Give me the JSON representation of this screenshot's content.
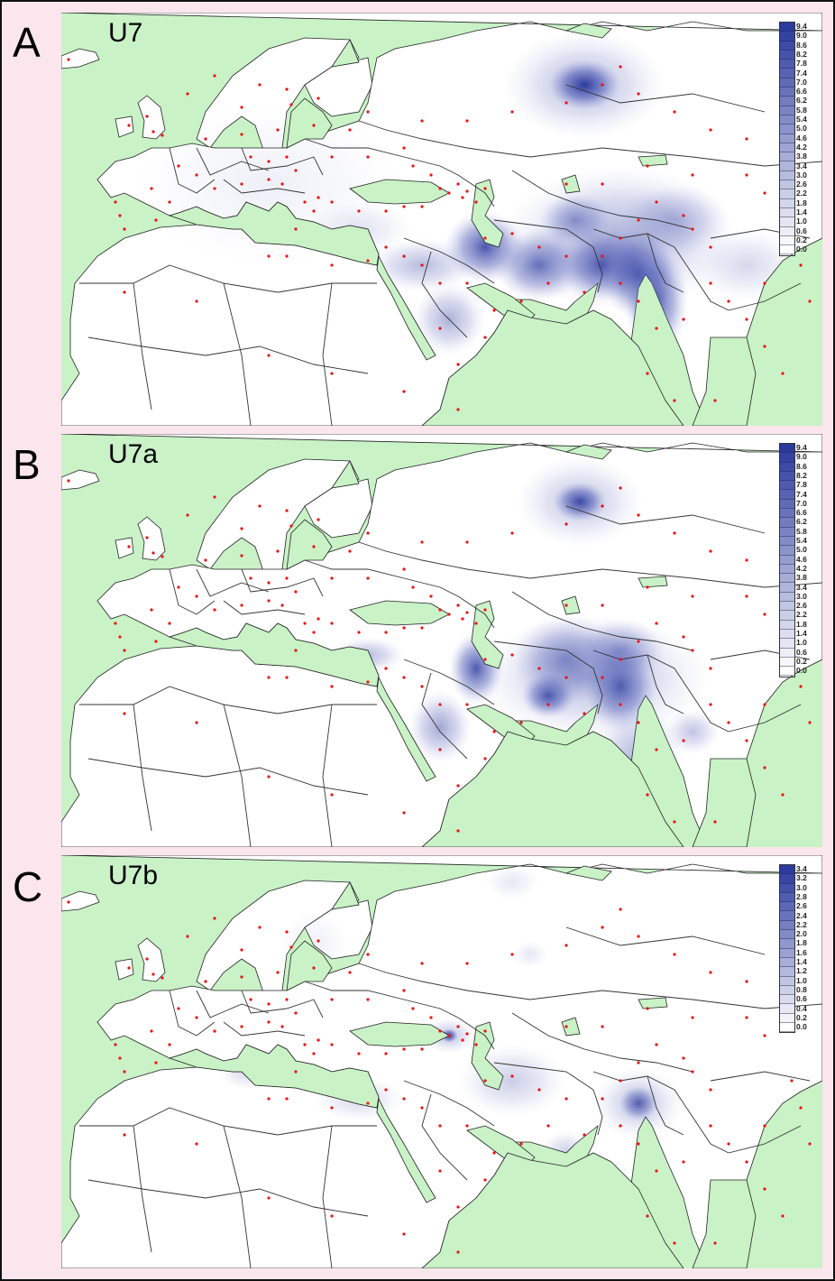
{
  "figure": {
    "panels": [
      {
        "letter": "A",
        "title": "U7",
        "legend": {
          "max": 9.4,
          "labels": [
            "9.4",
            "9.0",
            "8.6",
            "8.2",
            "7.8",
            "7.4",
            "7.0",
            "6.6",
            "6.2",
            "5.8",
            "5.4",
            "5.0",
            "4.6",
            "4.2",
            "3.8",
            "3.4",
            "3.0",
            "2.6",
            "2.2",
            "1.8",
            "1.4",
            "1.0",
            "0.6",
            "0.2",
            "0.0"
          ]
        },
        "hotspots_description": "High frequency across Iran, Afghanistan, Pakistan, northwest India, Gujarat; secondary peak in Volga-Ural region of Russia; moderate in Arabia, Turkey, Caucasus"
      },
      {
        "letter": "B",
        "title": "U7a",
        "legend": {
          "max": 9.4,
          "labels": [
            "9.4",
            "9.0",
            "8.6",
            "8.2",
            "7.8",
            "7.4",
            "7.0",
            "6.6",
            "6.2",
            "5.8",
            "5.4",
            "5.0",
            "4.6",
            "4.2",
            "3.8",
            "3.4",
            "3.0",
            "2.6",
            "2.2",
            "1.8",
            "1.4",
            "1.0",
            "0.6",
            "0.2",
            "0.0"
          ]
        },
        "hotspots_description": "Peaks in western Iran, southeast Iran/Baluchistan, Pakistan/Punjab; secondary in Volga-Ural; moderate in Turkey and Arabia"
      },
      {
        "letter": "C",
        "title": "U7b",
        "legend": {
          "max": 3.4,
          "labels": [
            "3.4",
            "3.2",
            "3.0",
            "2.8",
            "2.6",
            "2.4",
            "2.2",
            "2.0",
            "1.8",
            "1.6",
            "1.4",
            "1.2",
            "1.0",
            "0.8",
            "0.6",
            "0.4",
            "0.2",
            "0.0"
          ]
        },
        "hotspots_description": "Peaks in Caucasus (Georgia), Punjab (Pakistan/India border); low levels in Iran, Egypt/Libya, Italy"
      }
    ],
    "colors": {
      "background": "#fbe6ee",
      "sea": "#c9f2c7",
      "land": "#ffffff",
      "border_line": "#333333",
      "sample_dot": "#ee1111",
      "scale_high": "#2b3a9e",
      "scale_low": "#ffffff"
    }
  }
}
